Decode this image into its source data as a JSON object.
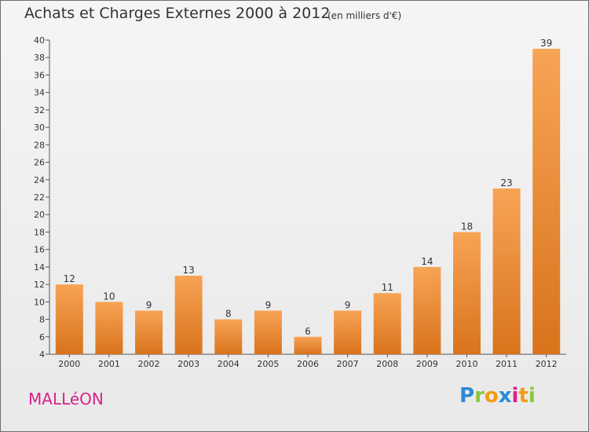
{
  "header": {
    "title": "Achats et Charges Externes 2000 à 2012",
    "subtitle": "(en milliers d'€)"
  },
  "footer": {
    "place": "MALLéON",
    "logo_letters": [
      "P",
      "r",
      "o",
      "x",
      "i",
      "t",
      "i"
    ],
    "logo_colors": [
      "#2a8ad6",
      "#8cc63f",
      "#f39c12",
      "#2a8ad6",
      "#d8238b",
      "#f39c12",
      "#8cc63f"
    ]
  },
  "chart_data": {
    "type": "bar",
    "categories": [
      "2000",
      "2001",
      "2002",
      "2003",
      "2004",
      "2005",
      "2006",
      "2007",
      "2008",
      "2009",
      "2010",
      "2011",
      "2012"
    ],
    "values": [
      12,
      10,
      9,
      13,
      8,
      9,
      6,
      9,
      11,
      14,
      18,
      23,
      39
    ],
    "title": "Achats et Charges Externes 2000 à 2012",
    "subtitle": "(en milliers d'€)",
    "xlabel": "",
    "ylabel": "",
    "ylim": [
      4,
      40
    ],
    "yticks": [
      4,
      6,
      8,
      10,
      12,
      14,
      16,
      18,
      20,
      22,
      24,
      26,
      28,
      30,
      32,
      34,
      36,
      38,
      40
    ],
    "grid": false,
    "bar_color": "#f0953a"
  }
}
